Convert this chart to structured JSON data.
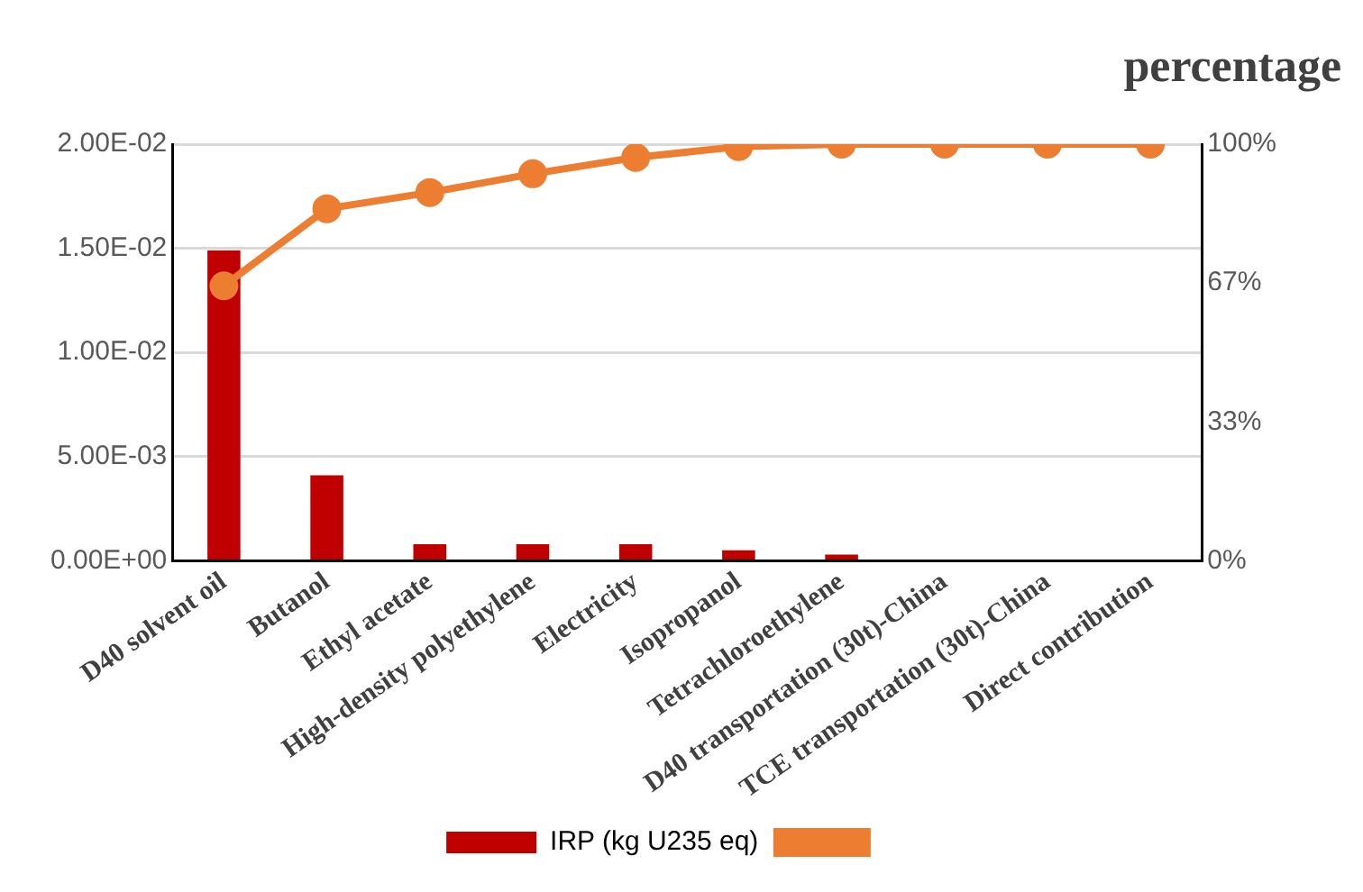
{
  "chart_data": {
    "type": "bar",
    "y2label": "percentage",
    "categories": [
      "D40 solvent oil",
      "Butanol",
      "Ethyl acetate",
      "High-density polyethylene",
      "Electricity",
      "Isopropanol",
      "Tetrachloroethylene",
      "D40 transportation (30t)-China",
      "TCE transportation (30t)-China",
      "Direct contribution"
    ],
    "series": [
      {
        "name": "IRP (kg U235 eq)",
        "color": "#c00000",
        "values": [
          0.0149,
          0.0041,
          0.0008,
          0.0008,
          0.0008,
          0.0005,
          0.0003,
          0,
          0,
          0
        ]
      },
      {
        "type": "line",
        "axis": "y2",
        "color": "#ed7d31",
        "values": [
          66,
          84.5,
          88.4,
          92.9,
          96.8,
          99.4,
          100,
          100,
          100,
          100
        ]
      }
    ],
    "ylim": [
      0,
      0.02
    ],
    "yticks": [
      {
        "value": 0,
        "label": "0.00E+00"
      },
      {
        "value": 0.005,
        "label": "5.00E-03"
      },
      {
        "value": 0.01,
        "label": "1.00E-02"
      },
      {
        "value": 0.015,
        "label": "1.50E-02"
      },
      {
        "value": 0.02,
        "label": "2.00E-02"
      }
    ],
    "y2lim": [
      0,
      100
    ],
    "y2ticks": [
      {
        "value": 0,
        "label": "0%"
      },
      {
        "value": 33.33,
        "label": "33%"
      },
      {
        "value": 66.67,
        "label": "67%"
      },
      {
        "value": 100,
        "label": "100%"
      }
    ],
    "grid": "y",
    "legend": "bottom",
    "marker": "circle"
  }
}
